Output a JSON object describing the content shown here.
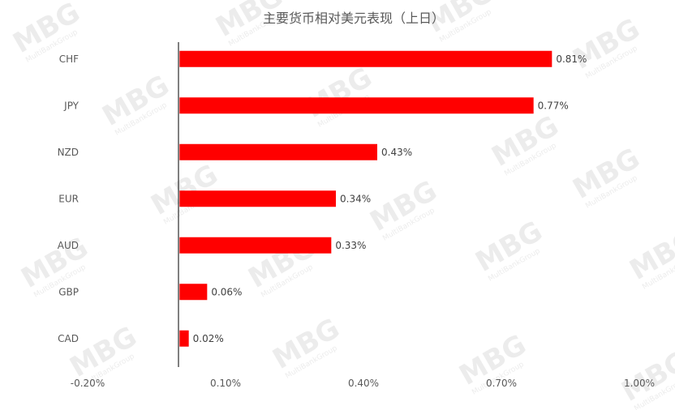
{
  "chart_data": {
    "type": "bar",
    "orientation": "horizontal",
    "title": "主要货币相对美元表现（上日）",
    "categories": [
      "CHF",
      "JPY",
      "NZD",
      "EUR",
      "AUD",
      "GBP",
      "CAD"
    ],
    "values": [
      0.81,
      0.77,
      0.43,
      0.34,
      0.33,
      0.06,
      0.02
    ],
    "value_labels": [
      "0.81%",
      "0.77%",
      "0.43%",
      "0.34%",
      "0.33%",
      "0.06%",
      "0.02%"
    ],
    "xlim": [
      -0.2,
      1.0
    ],
    "xticks": [
      -0.2,
      0.1,
      0.4,
      0.7,
      1.0
    ],
    "xtick_labels": [
      "-0.20%",
      "0.10%",
      "0.40%",
      "0.70%",
      "1.00%"
    ],
    "xlabel": "",
    "ylabel": "",
    "grid": false,
    "bar_color": "#ff0000"
  },
  "watermark": {
    "logo": "MBG",
    "sub": "MultiBankGroup"
  }
}
